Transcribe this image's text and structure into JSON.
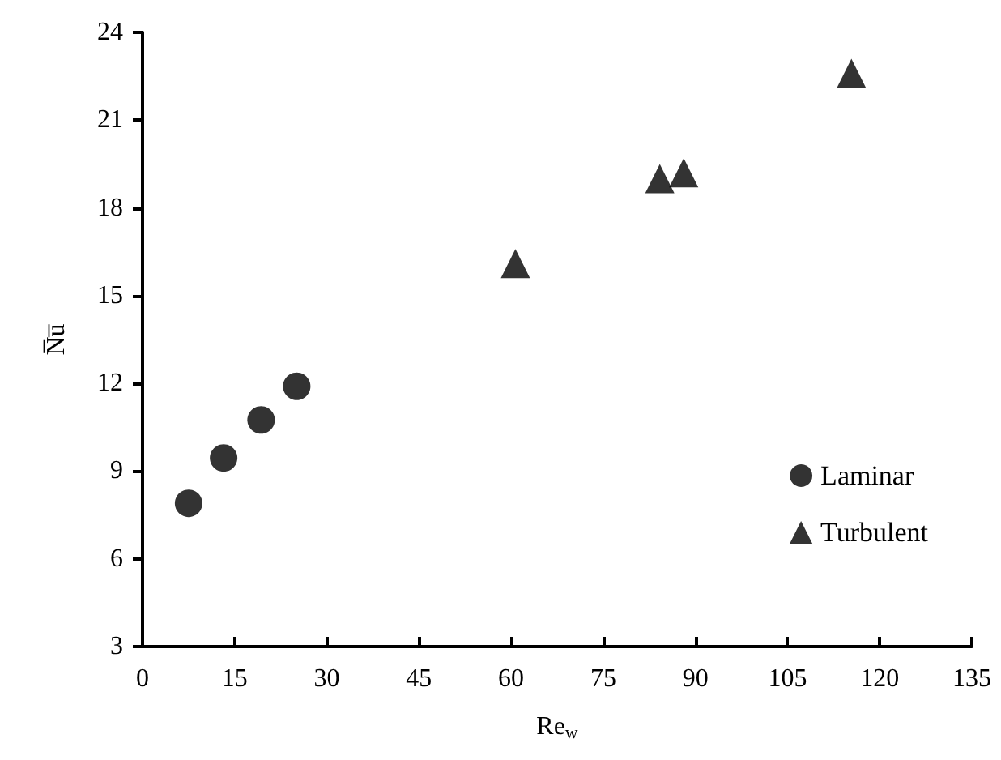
{
  "chart_data": {
    "type": "scatter",
    "xlabel": "Re$_{w}$",
    "ylabel": "N̅u̅",
    "xlim": [
      0,
      135
    ],
    "xticks": [
      0,
      15,
      30,
      45,
      60,
      75,
      90,
      105,
      120,
      135
    ],
    "ylim": [
      3,
      24
    ],
    "yticks": [
      3,
      6,
      9,
      12,
      15,
      18,
      21,
      24
    ],
    "grid": false,
    "legend": "right",
    "series": [
      {
        "name": "Laminar",
        "color": "#000000",
        "marker": "circle",
        "x": [
          7.5,
          13.2,
          19.3,
          25.1
        ],
        "values": [
          7.9,
          9.45,
          10.75,
          11.9
        ]
      },
      {
        "name": "Turbulent",
        "color": "#000000",
        "marker": "triangle",
        "x": [
          60.7,
          84.2,
          88.1,
          115.4
        ],
        "values": [
          16.1,
          19.0,
          19.2,
          22.6
        ]
      }
    ]
  }
}
